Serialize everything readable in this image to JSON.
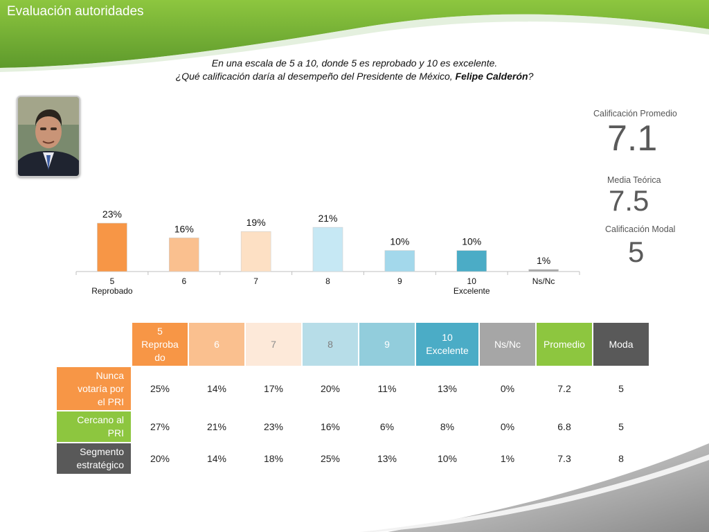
{
  "slide_title": "Evaluación autoridades",
  "question": {
    "line1": "En una escala de 5 a 10, donde 5 es reprobado y 10 es excelente.",
    "line2_pre": "¿Qué calificación daría al desempeño del Presidente de México, ",
    "line2_name": "Felipe Calderón",
    "line2_post": "?"
  },
  "stats": {
    "promedio_label": "Calificación Promedio",
    "promedio_value": "7.1",
    "teorica_label": "Media Teórica",
    "teorica_value": "7.5",
    "modal_label": "Calificación Modal",
    "modal_value": "5"
  },
  "chart_data": {
    "type": "bar",
    "categories": [
      "5\nReprobado",
      "6",
      "7",
      "8",
      "9",
      "10\nExcelente",
      "Ns/Nc"
    ],
    "values": [
      23,
      16,
      19,
      21,
      10,
      10,
      1
    ],
    "data_labels": [
      "23%",
      "16%",
      "19%",
      "21%",
      "10%",
      "10%",
      "1%"
    ],
    "colors": [
      "#f79646",
      "#fac08f",
      "#fde0c4",
      "#c6e8f4",
      "#a3d8eb",
      "#4bacc6",
      "#a6a6a6"
    ],
    "ylim": [
      0,
      25
    ],
    "grid": false,
    "legend": "none"
  },
  "table": {
    "headers": [
      {
        "label": "5\nReproba\ndo",
        "bg": "#f79646",
        "fg": "#ffffff"
      },
      {
        "label": "6",
        "bg": "#fac08f",
        "fg": "#ffffff"
      },
      {
        "label": "7",
        "bg": "#fde9d9",
        "fg": "#8c8c8c"
      },
      {
        "label": "8",
        "bg": "#b7dde8",
        "fg": "#7f7f7f"
      },
      {
        "label": "9",
        "bg": "#92cddc",
        "fg": "#ffffff"
      },
      {
        "label": "10\nExcelente",
        "bg": "#4bacc6",
        "fg": "#ffffff"
      },
      {
        "label": "Ns/Nc",
        "bg": "#a6a6a6",
        "fg": "#ffffff"
      },
      {
        "label": "Promedio",
        "bg": "#8dc63f",
        "fg": "#ffffff"
      },
      {
        "label": "Moda",
        "bg": "#595959",
        "fg": "#ffffff"
      }
    ],
    "rows": [
      {
        "label": "Nunca\nvotaría por\nel PRI",
        "bg": "#f79646",
        "values": [
          "25%",
          "14%",
          "17%",
          "20%",
          "11%",
          "13%",
          "0%",
          "7.2",
          "5"
        ]
      },
      {
        "label": "Cercano al\nPRI",
        "bg": "#8dc63f",
        "values": [
          "27%",
          "21%",
          "23%",
          "16%",
          "6%",
          "8%",
          "0%",
          "6.8",
          "5"
        ]
      },
      {
        "label": "Segmento\nestratégico",
        "bg": "#595959",
        "values": [
          "20%",
          "14%",
          "18%",
          "25%",
          "13%",
          "10%",
          "1%",
          "7.3",
          "8"
        ]
      }
    ]
  },
  "colors": {
    "header_green": "#7ab648",
    "header_green_dark": "#5f9a2f"
  }
}
